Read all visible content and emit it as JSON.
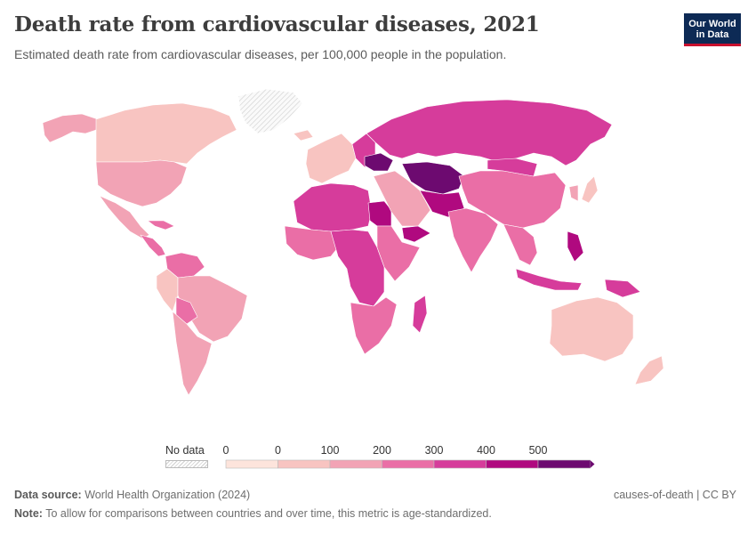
{
  "header": {
    "title": "Death rate from cardiovascular diseases, 2021",
    "subtitle": "Estimated death rate from cardiovascular diseases, per 100,000 people in the population.",
    "logo_line1": "Our World",
    "logo_line2": "in Data"
  },
  "legend": {
    "no_data_label": "No data",
    "ticks": [
      "0",
      "0",
      "100",
      "200",
      "300",
      "400",
      "500"
    ],
    "bins": [
      {
        "color": "#fde4dc"
      },
      {
        "color": "#f8c4c1"
      },
      {
        "color": "#f2a3b5"
      },
      {
        "color": "#ea6ea6"
      },
      {
        "color": "#d63c9b"
      },
      {
        "color": "#b0097f"
      },
      {
        "color": "#6d0a70"
      }
    ]
  },
  "footer": {
    "source_label": "Data source:",
    "source_text": "World Health Organization (2024)",
    "note_label": "Note:",
    "note_text": "To allow for comparisons between countries and over time, this metric is age-standardized.",
    "license": "causes-of-death | CC BY"
  },
  "map_data": {
    "regions": [
      {
        "name": "Alaska",
        "bin": 2
      },
      {
        "name": "Canada",
        "bin": 1
      },
      {
        "name": "Greenland",
        "bin": -1
      },
      {
        "name": "United States",
        "bin": 2
      },
      {
        "name": "Mexico",
        "bin": 2
      },
      {
        "name": "Central America",
        "bin": 3
      },
      {
        "name": "Caribbean",
        "bin": 3
      },
      {
        "name": "Colombia / Venezuela",
        "bin": 3
      },
      {
        "name": "Peru",
        "bin": 1
      },
      {
        "name": "Brazil",
        "bin": 2
      },
      {
        "name": "Bolivia",
        "bin": 3
      },
      {
        "name": "Chile / Argentina",
        "bin": 2
      },
      {
        "name": "Iceland",
        "bin": 1
      },
      {
        "name": "Western Europe",
        "bin": 1
      },
      {
        "name": "Eastern Europe",
        "bin": 4
      },
      {
        "name": "Ukraine region",
        "bin": 6
      },
      {
        "name": "Russia",
        "bin": 4
      },
      {
        "name": "North Africa",
        "bin": 4
      },
      {
        "name": "Egypt",
        "bin": 5
      },
      {
        "name": "West Africa",
        "bin": 3
      },
      {
        "name": "Central Africa",
        "bin": 4
      },
      {
        "name": "East Africa",
        "bin": 3
      },
      {
        "name": "Southern Africa",
        "bin": 3
      },
      {
        "name": "Madagascar",
        "bin": 4
      },
      {
        "name": "Middle East",
        "bin": 2
      },
      {
        "name": "Yemen",
        "bin": 5
      },
      {
        "name": "Central Asia",
        "bin": 6
      },
      {
        "name": "Afghanistan / Iran",
        "bin": 5
      },
      {
        "name": "India",
        "bin": 3
      },
      {
        "name": "China",
        "bin": 3
      },
      {
        "name": "Mongolia",
        "bin": 4
      },
      {
        "name": "Japan",
        "bin": 1
      },
      {
        "name": "Korea",
        "bin": 2
      },
      {
        "name": "Southeast Asia",
        "bin": 3
      },
      {
        "name": "Philippines",
        "bin": 5
      },
      {
        "name": "Indonesia",
        "bin": 4
      },
      {
        "name": "Papua New Guinea",
        "bin": 4
      },
      {
        "name": "Australia",
        "bin": 1
      },
      {
        "name": "New Zealand",
        "bin": 1
      }
    ]
  }
}
